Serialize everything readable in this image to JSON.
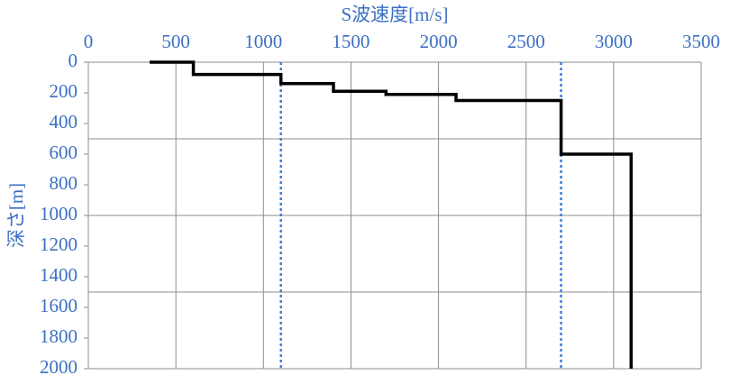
{
  "chart_data": {
    "type": "line",
    "title": "S波速度[m/s]",
    "y_label": "深さ[m]",
    "xlim": [
      0,
      3500
    ],
    "xticks": [
      0,
      500,
      1000,
      1500,
      2000,
      2500,
      3000,
      3500
    ],
    "ylim": [
      0,
      2000
    ],
    "yticks": [
      0,
      200,
      400,
      600,
      800,
      1000,
      1200,
      1400,
      1600,
      1800,
      2000
    ],
    "y_inverted": true,
    "y_gridlines": [
      500,
      1000,
      1500,
      2000
    ],
    "grid": true,
    "series": [
      {
        "color": "#000000",
        "x": [
          350,
          600,
          600,
          1100,
          1100,
          1400,
          1400,
          1700,
          1700,
          2100,
          2100,
          2700,
          2700,
          3100,
          3100
        ],
        "values": [
          0,
          0,
          80,
          80,
          140,
          140,
          190,
          190,
          210,
          210,
          250,
          250,
          600,
          600,
          2000
        ]
      }
    ],
    "reference_lines": {
      "color": "#3f7fd9",
      "x": [
        1100,
        2700
      ]
    }
  }
}
